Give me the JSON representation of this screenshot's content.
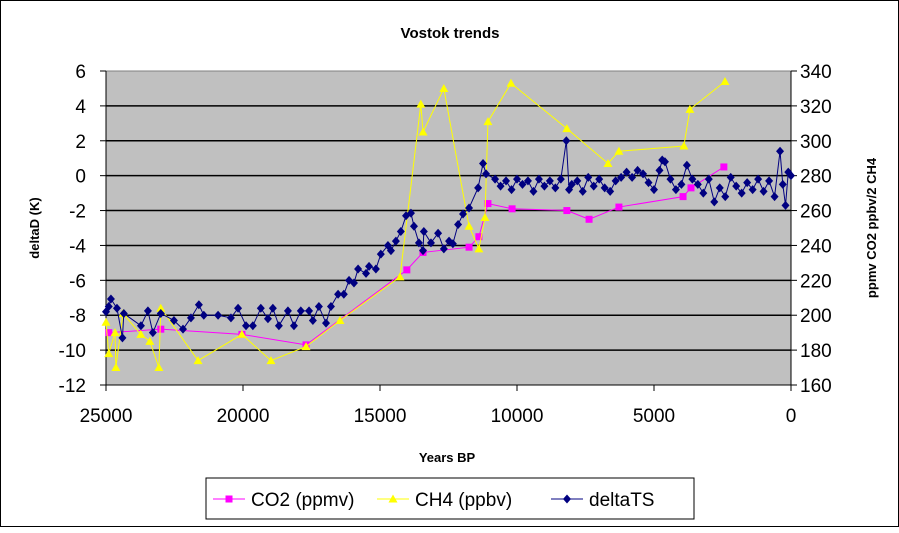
{
  "chart_data": {
    "type": "line",
    "title": "Vostok trends",
    "xlabel": "Years BP",
    "ylabel": "deltaD (K)",
    "ylabel_right": "ppmv CO2 ppbv/2 CH4",
    "xlim": [
      25000,
      0
    ],
    "ylim": [
      -12,
      6
    ],
    "ylim_right": [
      160,
      340
    ],
    "x_ticks": [
      "25000",
      "20000",
      "15000",
      "10000",
      "5000",
      "0"
    ],
    "y_ticks": [
      "6",
      "4",
      "2",
      "0",
      "-2",
      "-4",
      "-6",
      "-8",
      "-10",
      "-12"
    ],
    "y_ticks_right": [
      "340",
      "320",
      "300",
      "280",
      "260",
      "240",
      "220",
      "200",
      "180",
      "160"
    ],
    "grid": true,
    "legend_position": "bottom",
    "plot_background": "#C0C0C0",
    "series": [
      {
        "name": "CO2 (ppmv)",
        "axis": "right",
        "color": "#FF00FF",
        "marker": "square",
        "x": [
          24900,
          23000,
          20040,
          17700,
          14020,
          13430,
          11750,
          11390,
          11060,
          10180,
          8180,
          7370,
          6280,
          3940,
          3650,
          2450
        ],
        "y": [
          190,
          192,
          189,
          183,
          226,
          236,
          239,
          245,
          264,
          261,
          260,
          255,
          262,
          268,
          273,
          285
        ]
      },
      {
        "name": "CH4 (ppbv)",
        "axis": "right",
        "color": "#FFFF00",
        "marker": "triangle",
        "x": [
          25000,
          24900,
          24670,
          24640,
          24380,
          23730,
          23400,
          23070,
          23000,
          21640,
          20040,
          18980,
          17700,
          16460,
          14270,
          13510,
          13430,
          12670,
          11750,
          11390,
          11170,
          11060,
          10220,
          8180,
          6680,
          6280,
          3910,
          3690,
          2410
        ],
        "y": [
          196,
          178,
          190,
          170,
          201,
          189,
          185,
          170,
          204,
          174,
          189,
          174,
          182,
          197,
          222,
          321,
          305,
          330,
          251,
          238,
          256,
          311,
          333,
          307,
          287,
          294,
          297,
          318,
          334
        ]
      },
      {
        "name": "deltaTS",
        "axis": "left",
        "color": "#000080",
        "marker": "diamond",
        "x": [
          25000,
          24900,
          24820,
          24600,
          24400,
          24350,
          23725,
          23470,
          23290,
          23000,
          22520,
          22190,
          21900,
          21610,
          21430,
          20910,
          20440,
          20180,
          19890,
          19640,
          19350,
          19090,
          18910,
          18690,
          18360,
          18140,
          17890,
          17590,
          17450,
          17230,
          16970,
          16790,
          16530,
          16320,
          16130,
          15950,
          15800,
          15510,
          15400,
          15150,
          14970,
          14710,
          14600,
          14420,
          14240,
          14050,
          13870,
          13760,
          13580,
          13430,
          13400,
          13140,
          12880,
          12670,
          12480,
          12340,
          12150,
          11970,
          11750,
          11420,
          11240,
          11130,
          10800,
          10600,
          10400,
          10200,
          10000,
          9800,
          9600,
          9400,
          9200,
          9000,
          8800,
          8600,
          8400,
          8200,
          8100,
          8000,
          7800,
          7600,
          7400,
          7200,
          7000,
          6800,
          6600,
          6400,
          6200,
          6000,
          5800,
          5600,
          5400,
          5200,
          5000,
          4800,
          4700,
          4600,
          4400,
          4200,
          4000,
          3800,
          3600,
          3400,
          3200,
          3000,
          2800,
          2600,
          2400,
          2200,
          2000,
          1800,
          1600,
          1400,
          1200,
          1000,
          800,
          600,
          400,
          300,
          200,
          100,
          0
        ],
        "y": [
          -7.8,
          -7.5,
          -7.07,
          -7.6,
          -9.3,
          -7.9,
          -8.6,
          -7.75,
          -9.0,
          -7.9,
          -8.3,
          -8.8,
          -8.15,
          -7.4,
          -8.0,
          -8.0,
          -8.15,
          -7.6,
          -8.6,
          -8.6,
          -7.6,
          -8.2,
          -7.6,
          -8.6,
          -7.75,
          -8.6,
          -7.75,
          -7.75,
          -8.3,
          -7.5,
          -8.45,
          -7.5,
          -6.8,
          -6.8,
          -6.0,
          -6.15,
          -5.35,
          -5.6,
          -5.2,
          -5.35,
          -4.5,
          -4.0,
          -4.3,
          -3.75,
          -3.2,
          -2.3,
          -2.15,
          -2.9,
          -3.85,
          -4.3,
          -3.2,
          -3.85,
          -3.3,
          -4.2,
          -3.75,
          -3.9,
          -2.8,
          -2.2,
          -1.85,
          -0.7,
          0.7,
          0.1,
          -0.2,
          -0.6,
          -0.3,
          -0.8,
          -0.2,
          -0.5,
          -0.3,
          -0.9,
          -0.2,
          -0.6,
          -0.3,
          -0.7,
          -0.2,
          2.0,
          -0.8,
          -0.5,
          -0.3,
          -0.9,
          -0.1,
          -0.6,
          -0.2,
          -0.7,
          -0.9,
          -0.3,
          -0.1,
          0.2,
          -0.1,
          0.3,
          0.1,
          -0.4,
          -0.8,
          0.3,
          0.9,
          0.8,
          -0.2,
          -0.8,
          -0.5,
          0.6,
          -0.2,
          -0.5,
          -1.0,
          -0.2,
          -1.5,
          -0.7,
          -1.2,
          -0.1,
          -0.6,
          -1.0,
          -0.4,
          -0.8,
          -0.2,
          -0.9,
          -0.3,
          -1.2,
          1.4,
          -0.5,
          -1.7,
          0.2,
          0.0
        ]
      }
    ]
  }
}
